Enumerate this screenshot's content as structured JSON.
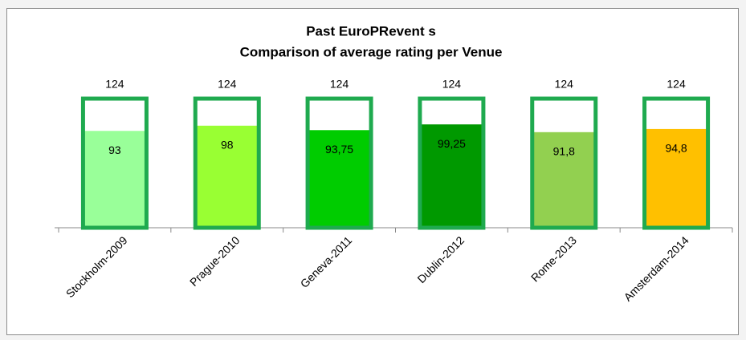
{
  "chart_data": {
    "type": "bar",
    "title": "Past EuroPRevent s",
    "subtitle": "Comparison of average rating per Venue",
    "categories": [
      "Stockholm-2009",
      "Prague-2010",
      "Geneva-2011",
      "Dublin-2012",
      "Rome-2013",
      "Amsterdam-2014"
    ],
    "series": [
      {
        "color": "#1faa4f",
        "values": [
          124,
          124,
          124,
          124,
          124,
          124
        ]
      },
      {
        "colors": [
          "#99ff99",
          "#99ff33",
          "#00cc00",
          "#009900",
          "#92d050",
          "#ffc000"
        ],
        "values": [
          93,
          98,
          93.75,
          99.25,
          91.8,
          94.8
        ],
        "value_labels": [
          "93",
          "98",
          "93,75",
          "99,25",
          "91,8",
          "94,8"
        ]
      }
    ],
    "ylim": [
      0,
      124
    ]
  }
}
